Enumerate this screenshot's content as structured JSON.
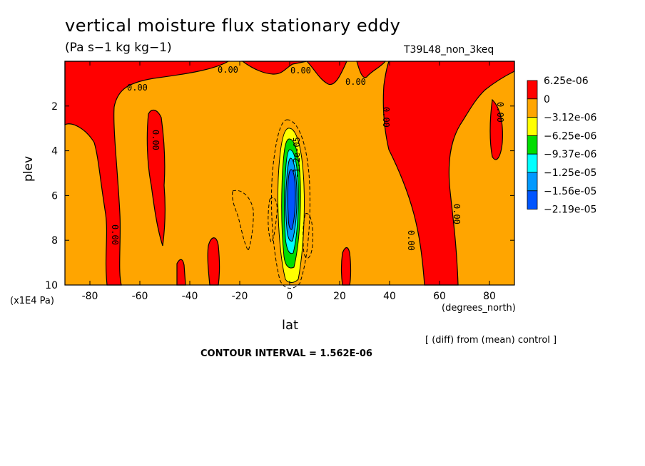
{
  "chart_data": {
    "type": "heatmap",
    "title": "vertical moisture flux stationary eddy",
    "units": "(Pa s−1 kg kg−1)",
    "run_label": "T39L48_non_3keq",
    "xlabel": "lat",
    "x_units": "(degrees_north)",
    "ylabel": "plev",
    "y_units": "(x1E4 Pa)",
    "xlim": [
      -90,
      90
    ],
    "ylim": [
      10,
      0
    ],
    "x_ticks": [
      "-80",
      "-60",
      "-40",
      "-20",
      "0",
      "20",
      "40",
      "60",
      "80"
    ],
    "y_ticks": [
      "2",
      "4",
      "6",
      "8",
      "10"
    ],
    "x_tick_values": [
      -80,
      -60,
      -40,
      -20,
      0,
      20,
      40,
      60,
      80
    ],
    "y_tick_values": [
      2,
      4,
      6,
      8,
      10
    ],
    "contour_labels": [
      "0.00",
      "0.00",
      "0.00",
      "0.00",
      "0.00",
      "0.00",
      "0.00",
      "0.00",
      "0.00",
      "0.00",
      "-1.2e-05"
    ],
    "legend": {
      "labels": [
        "6.25e-06",
        "0",
        "−3.12e-06",
        "−6.25e-06",
        "−9.37e-06",
        "−1.25e-05",
        "−1.56e-05",
        "−2.19e-05"
      ],
      "colors": [
        "#ff0000",
        "#ffa500",
        "#ffff00",
        "#00dd00",
        "#00ffff",
        "#0099ff",
        "#0055ff"
      ]
    },
    "footnote": "[ (diff) from (mean) control ]",
    "contour_interval": "CONTOUR INTERVAL = 1.562E-06"
  }
}
